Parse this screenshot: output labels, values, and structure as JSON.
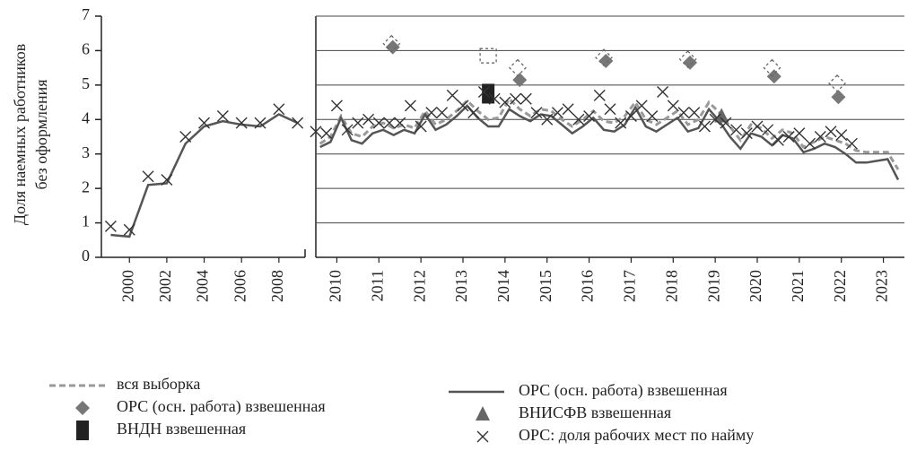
{
  "chart_data": [
    {
      "type": "line",
      "ylabel": [
        "Доля наемных работников",
        "без оформления"
      ],
      "ylim": [
        0,
        7
      ],
      "yticks": [
        0,
        1,
        2,
        3,
        4,
        5,
        6,
        7
      ],
      "xlim": [
        1998.5,
        2009.4
      ],
      "xticks": [
        2000,
        2002,
        2004,
        2006,
        2008
      ],
      "grid": false,
      "series": [
        {
          "color": "#555555",
          "marker": "none",
          "style": "solid",
          "x": [
            1999,
            2000,
            2001,
            2002,
            2003,
            2004,
            2005,
            2006,
            2007,
            2008,
            2009
          ],
          "values": [
            0.65,
            0.6,
            2.1,
            2.15,
            3.3,
            3.8,
            3.95,
            3.85,
            3.8,
            4.15,
            3.9
          ]
        },
        {
          "color": "#333333",
          "marker": "x",
          "style": "none",
          "x": [
            1999,
            2000,
            2001,
            2002,
            2003,
            2004,
            2005,
            2006,
            2007,
            2008,
            2009
          ],
          "values": [
            0.9,
            0.8,
            2.35,
            2.25,
            3.5,
            3.9,
            4.1,
            3.9,
            3.9,
            4.3,
            3.9
          ]
        }
      ]
    },
    {
      "type": "line",
      "ylim": [
        0,
        7
      ],
      "xlim": [
        2010,
        2024
      ],
      "xticks": [
        {
          "value": 2010.5,
          "label": "2010"
        },
        {
          "value": 2011.5,
          "label": "2011"
        },
        {
          "value": 2012.5,
          "label": "2012"
        },
        {
          "value": 2013.5,
          "label": "2013"
        },
        {
          "value": 2014.5,
          "label": "2014"
        },
        {
          "value": 2015.5,
          "label": "2015"
        },
        {
          "value": 2016.5,
          "label": "2016"
        },
        {
          "value": 2017.5,
          "label": "2017"
        },
        {
          "value": 2018.5,
          "label": "2018"
        },
        {
          "value": 2019.5,
          "label": "2019"
        },
        {
          "value": 2020.5,
          "label": "2020"
        },
        {
          "value": 2021.5,
          "label": "2021"
        },
        {
          "value": 2022.5,
          "label": "2022"
        },
        {
          "value": 2023.5,
          "label": "2023"
        }
      ],
      "grid": true,
      "series": [
        {
          "name": "вся выборка",
          "color": "#999999",
          "marker": "none",
          "style": "dashed",
          "x": [
            2010.1,
            2010.35,
            2010.6,
            2010.85,
            2011.1,
            2011.35,
            2011.6,
            2011.85,
            2012.1,
            2012.35,
            2012.6,
            2012.85,
            2013.1,
            2013.35,
            2013.6,
            2013.85,
            2014.1,
            2014.35,
            2014.6,
            2014.85,
            2015.1,
            2015.35,
            2015.6,
            2015.85,
            2016.1,
            2016.35,
            2016.6,
            2016.85,
            2017.1,
            2017.35,
            2017.6,
            2017.85,
            2018.1,
            2018.35,
            2018.6,
            2018.85,
            2019.1,
            2019.35,
            2019.6,
            2019.85,
            2020.1,
            2020.35,
            2020.6,
            2020.85,
            2021.1,
            2021.35,
            2021.6,
            2021.85,
            2022.1,
            2022.35,
            2022.6,
            2022.85,
            2023.1,
            2023.35,
            2023.6,
            2023.85
          ],
          "values": [
            3.3,
            3.5,
            4.1,
            3.6,
            3.5,
            3.8,
            3.9,
            3.75,
            3.85,
            3.75,
            4.25,
            3.85,
            4.0,
            4.25,
            4.55,
            4.25,
            4.0,
            4.05,
            4.6,
            4.3,
            4.1,
            4.3,
            4.25,
            4.0,
            3.8,
            4.0,
            4.25,
            3.95,
            3.9,
            4.1,
            4.5,
            4.0,
            3.85,
            4.05,
            4.25,
            3.85,
            4.0,
            4.5,
            4.2,
            3.8,
            3.4,
            3.85,
            3.75,
            3.45,
            3.7,
            3.6,
            3.2,
            3.35,
            3.5,
            3.4,
            3.3,
            3.1,
            3.05,
            3.05,
            3.05,
            2.55
          ]
        },
        {
          "name": "ОРС (осн. работа) взвешенная",
          "color": "#777777",
          "marker": "diamond",
          "style": "none",
          "x": [
            2011.83,
            2014.85,
            2016.9,
            2018.9,
            2020.9,
            2022.43
          ],
          "values": [
            6.1,
            5.15,
            5.7,
            5.65,
            5.25,
            4.65
          ]
        },
        {
          "name": "ВНДН взвешенная",
          "color": "#222222",
          "marker": "square",
          "style": "none",
          "x": [
            2014.1
          ],
          "values": [
            4.75
          ]
        },
        {
          "name": "ОРС (осн. работа) взвешенная",
          "color": "#555555",
          "marker": "none",
          "style": "solid",
          "x": [
            2010.1,
            2010.35,
            2010.6,
            2010.85,
            2011.1,
            2011.35,
            2011.6,
            2011.85,
            2012.1,
            2012.35,
            2012.6,
            2012.85,
            2013.1,
            2013.35,
            2013.6,
            2013.85,
            2014.1,
            2014.35,
            2014.6,
            2014.85,
            2015.1,
            2015.35,
            2015.6,
            2015.85,
            2016.1,
            2016.35,
            2016.6,
            2016.85,
            2017.1,
            2017.35,
            2017.6,
            2017.85,
            2018.1,
            2018.35,
            2018.6,
            2018.85,
            2019.1,
            2019.35,
            2019.6,
            2019.85,
            2020.1,
            2020.35,
            2020.6,
            2020.85,
            2021.1,
            2021.35,
            2021.6,
            2021.85,
            2022.1,
            2022.35,
            2022.6,
            2022.85,
            2023.1,
            2023.35,
            2023.6,
            2023.85
          ],
          "values": [
            3.2,
            3.35,
            4.05,
            3.4,
            3.3,
            3.6,
            3.7,
            3.55,
            3.7,
            3.6,
            4.15,
            3.7,
            3.85,
            4.1,
            4.4,
            4.05,
            3.8,
            3.8,
            4.3,
            4.1,
            3.95,
            4.15,
            4.1,
            3.85,
            3.6,
            3.8,
            4.05,
            3.7,
            3.65,
            3.85,
            4.35,
            3.8,
            3.65,
            3.85,
            4.05,
            3.65,
            3.75,
            4.3,
            3.95,
            3.5,
            3.15,
            3.6,
            3.5,
            3.25,
            3.55,
            3.45,
            3.05,
            3.15,
            3.3,
            3.2,
            3.0,
            2.75,
            2.75,
            2.8,
            2.85,
            2.25
          ]
        },
        {
          "name": "ВНИСФВ взвешенная",
          "color": "#666666",
          "marker": "triangle",
          "style": "none",
          "x": [
            2019.65
          ],
          "values": [
            4.1
          ]
        },
        {
          "name": "ОРС: доля рабочих мест по найму",
          "color": "#333333",
          "marker": "x",
          "style": "none",
          "x": [
            2010,
            2010.25,
            2010.5,
            2010.75,
            2011,
            2011.25,
            2011.5,
            2011.75,
            2012,
            2012.25,
            2012.5,
            2012.75,
            2013,
            2013.25,
            2013.5,
            2013.75,
            2014,
            2014.25,
            2014.5,
            2014.75,
            2015,
            2015.25,
            2015.5,
            2015.75,
            2016,
            2016.25,
            2016.5,
            2016.75,
            2017,
            2017.25,
            2017.5,
            2017.75,
            2018,
            2018.25,
            2018.5,
            2018.75,
            2019,
            2019.25,
            2019.5,
            2019.75,
            2020,
            2020.25,
            2020.5,
            2020.75,
            2021,
            2021.25,
            2021.5,
            2021.75,
            2022,
            2022.25,
            2022.5,
            2022.75
          ],
          "values": [
            3.65,
            3.6,
            4.4,
            3.7,
            3.9,
            4.0,
            3.9,
            3.9,
            3.9,
            4.4,
            3.8,
            4.2,
            4.2,
            4.7,
            4.4,
            4.2,
            4.8,
            4.6,
            4.5,
            4.6,
            4.6,
            4.2,
            4.0,
            4.2,
            4.3,
            4.0,
            4.1,
            4.7,
            4.3,
            3.9,
            4.1,
            4.4,
            4.1,
            4.8,
            4.4,
            4.2,
            4.2,
            3.8,
            4.0,
            3.9,
            3.7,
            3.6,
            3.8,
            3.7,
            3.4,
            3.5,
            3.6,
            3.3,
            3.5,
            3.65,
            3.55,
            3.3
          ]
        },
        {
          "color": "#666666",
          "marker": "diamond-dashed",
          "style": "none",
          "x": [
            2011.8,
            2014.8,
            2016.85,
            2018.85,
            2020.85,
            2022.4
          ],
          "values": [
            6.2,
            5.5,
            5.8,
            5.75,
            5.5,
            5.05
          ]
        },
        {
          "color": "#666666",
          "marker": "square-dashed",
          "style": "none",
          "x": [
            2014.1
          ],
          "values": [
            5.85
          ]
        }
      ]
    }
  ]
}
